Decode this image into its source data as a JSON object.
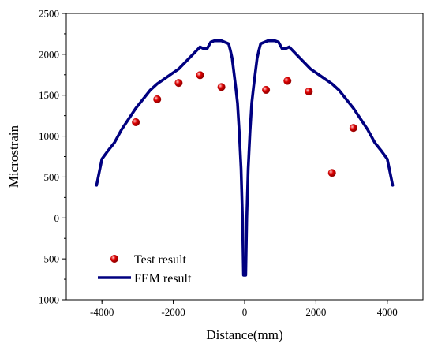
{
  "chart_data": {
    "type": "scatter",
    "title": "",
    "xlabel": "Distance(mm)",
    "ylabel": "Microstrain",
    "xlim": [
      -5000,
      5000
    ],
    "ylim": [
      -1000,
      2500
    ],
    "x_ticks": [
      -4000,
      -2000,
      0,
      2000,
      4000
    ],
    "x_tick_labels": [
      "-4000",
      "-2000",
      "0",
      "2000",
      "4000"
    ],
    "y_ticks": [
      -1000,
      -500,
      0,
      500,
      1000,
      1500,
      2000,
      2500
    ],
    "y_tick_labels": [
      "-1000",
      "-500",
      "0",
      "500",
      "1000",
      "1500",
      "2000",
      "2500"
    ],
    "grid": false,
    "legend_position": "bottom-left",
    "series": [
      {
        "name": "Test result",
        "kind": "scatter",
        "color": "#e00000",
        "x": [
          -3050,
          -2450,
          -1850,
          -1250,
          -650,
          600,
          1200,
          1800,
          2450,
          3050
        ],
        "y": [
          1170,
          1450,
          1650,
          1745,
          1600,
          1565,
          1675,
          1545,
          550,
          1100
        ]
      },
      {
        "name": "FEM result",
        "kind": "line",
        "color": "#000080",
        "x": [
          -4150,
          -4000,
          -3850,
          -3650,
          -3450,
          -3250,
          -3050,
          -2850,
          -2650,
          -2450,
          -2250,
          -2050,
          -1850,
          -1650,
          -1450,
          -1250,
          -1150,
          -1050,
          -950,
          -850,
          -650,
          -450,
          -400,
          -350,
          -300,
          -250,
          -200,
          -150,
          -100,
          -60,
          -30,
          0,
          30,
          60,
          100,
          150,
          200,
          250,
          300,
          350,
          400,
          450,
          650,
          850,
          950,
          1050,
          1150,
          1250,
          1450,
          1650,
          1850,
          2050,
          2250,
          2450,
          2650,
          2850,
          3050,
          3250,
          3450,
          3650,
          3850,
          4000,
          4150
        ],
        "y": [
          400,
          720,
          810,
          920,
          1080,
          1210,
          1340,
          1450,
          1560,
          1640,
          1700,
          1760,
          1820,
          1910,
          2000,
          2090,
          2070,
          2070,
          2150,
          2165,
          2165,
          2130,
          2050,
          1950,
          1780,
          1600,
          1400,
          1050,
          600,
          0,
          -700,
          -700,
          -700,
          0,
          600,
          1050,
          1400,
          1600,
          1780,
          1950,
          2050,
          2130,
          2165,
          2165,
          2150,
          2070,
          2070,
          2090,
          2000,
          1910,
          1820,
          1760,
          1700,
          1640,
          1560,
          1450,
          1340,
          1210,
          1080,
          920,
          810,
          720,
          400
        ]
      }
    ]
  }
}
